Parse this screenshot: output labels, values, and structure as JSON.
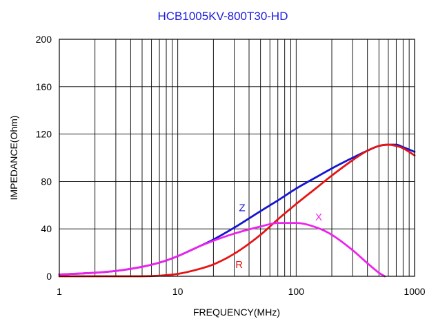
{
  "chart_data": {
    "type": "line",
    "title": "HCB1005KV-800T30-HD",
    "xlabel": "FREQUENCY(MHz)",
    "ylabel": "IMPEDANCE(Ohm)",
    "xscale": "log",
    "xlim": [
      1,
      1000
    ],
    "ylim": [
      0,
      200
    ],
    "xticks": [
      1,
      10,
      100,
      1000
    ],
    "xtick_labels": [
      "1",
      "10",
      "100",
      "1000"
    ],
    "yticks": [
      0,
      40,
      80,
      120,
      160,
      200
    ],
    "ytick_labels": [
      "0",
      "40",
      "80",
      "120",
      "160",
      "200"
    ],
    "grid": true,
    "colors": {
      "title": "#1a1adc",
      "frame": "#000000",
      "grid": "#000000"
    },
    "series": [
      {
        "name": "Z",
        "color": "#1414d2",
        "x": [
          1,
          2,
          3,
          5,
          7,
          10,
          15,
          20,
          30,
          50,
          70,
          100,
          150,
          200,
          300,
          400,
          500,
          600,
          700,
          800,
          1000
        ],
        "y": [
          1.5,
          3,
          4.5,
          8,
          11.5,
          17,
          25,
          31,
          41,
          55,
          64,
          74,
          84,
          91,
          100,
          106,
          110,
          111,
          111,
          109,
          105
        ]
      },
      {
        "name": "R",
        "color": "#e61414",
        "x": [
          1,
          3,
          5,
          7,
          10,
          15,
          20,
          30,
          50,
          70,
          100,
          150,
          200,
          300,
          400,
          500,
          600,
          700,
          800,
          1000
        ],
        "y": [
          0,
          0,
          0,
          0.5,
          2,
          6,
          10,
          19,
          35,
          48,
          61,
          75,
          85,
          98,
          106,
          110,
          111,
          110,
          108,
          102
        ]
      },
      {
        "name": "X",
        "color": "#ee22ee",
        "x": [
          1,
          2,
          3,
          5,
          7,
          10,
          15,
          20,
          30,
          50,
          70,
          100,
          150,
          200,
          300,
          400,
          500,
          560
        ],
        "y": [
          1.5,
          3,
          4.5,
          8,
          11.5,
          17,
          25,
          30,
          36,
          42,
          45,
          45,
          41,
          35,
          22,
          11,
          3,
          0
        ]
      }
    ]
  }
}
